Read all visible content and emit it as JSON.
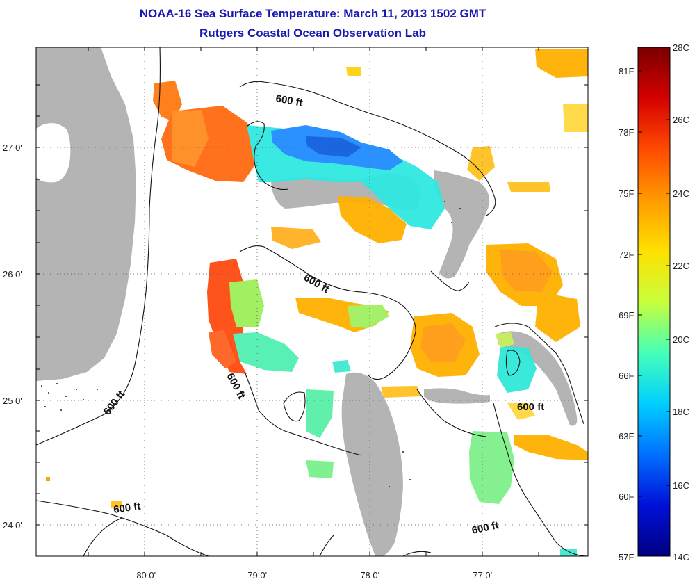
{
  "title": "NOAA-16 Sea Surface Temperature:  March 11, 2013 1502 GMT",
  "subtitle": "Rutgers Coastal Ocean Observation Lab",
  "map": {
    "lon_ticks": [
      "-80 0'",
      "-79 0'",
      "-78 0'",
      "-77 0'"
    ],
    "lat_ticks": [
      "27 0'",
      "26 0'",
      "25 0'",
      "24 0'"
    ],
    "contour_labels": [
      "600 ft",
      "600 ft",
      "600 ft",
      "600 ft",
      "600 ft",
      "600 ft"
    ]
  },
  "colorbar": {
    "fahrenheit": [
      "81F",
      "78F",
      "75F",
      "72F",
      "69F",
      "66F",
      "63F",
      "60F",
      "57F"
    ],
    "celsius": [
      "28C",
      "26C",
      "24C",
      "22C",
      "20C",
      "18C",
      "16C",
      "14C"
    ],
    "colors": [
      "#7a0000",
      "#d40000",
      "#ff4a00",
      "#ff9a00",
      "#ffe000",
      "#c8ff3a",
      "#46ffb8",
      "#00d0ff",
      "#0070ff",
      "#0010d8",
      "#000080"
    ]
  },
  "colors": {
    "land": "#b4b4b4",
    "title": "#1a1ab0"
  }
}
